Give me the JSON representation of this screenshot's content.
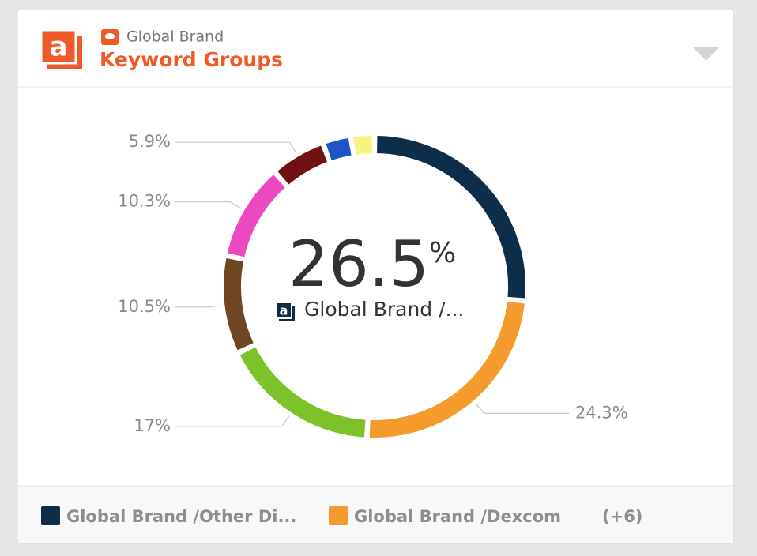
{
  "header": {
    "subtitle": "Global Brand",
    "title": "Keyword Groups"
  },
  "chart_data": {
    "type": "donut",
    "categories": [
      "Global Brand /Other Di...",
      "Global Brand /Dexcom",
      null,
      null,
      null,
      null,
      null,
      null
    ],
    "values": [
      26.5,
      24.3,
      17,
      10.5,
      10.3,
      5.9,
      3,
      2.5
    ],
    "value_labels": [
      null,
      "24.3%",
      "17%",
      "10.5%",
      "10.3%",
      "5.9%",
      null,
      null
    ],
    "colors": [
      "#0d2d48",
      "#f59a2c",
      "#7ec22a",
      "#6e4623",
      "#ec48c0",
      "#6e1216",
      "#1f55c9",
      "#f8f37a"
    ],
    "center_unit": "%",
    "center_name": "Global Brand /...",
    "legend_more": "(+6)"
  }
}
